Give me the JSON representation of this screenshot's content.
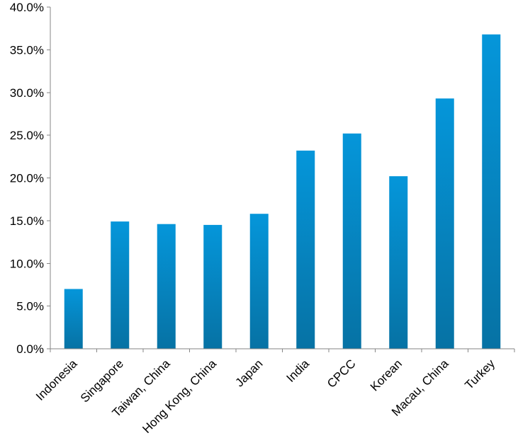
{
  "chart_data": {
    "type": "bar",
    "categories": [
      "Indonesia",
      "Singapore",
      "Taiwan, China",
      "Hong Kong, China",
      "Japan",
      "India",
      "CPCC",
      "Korean",
      "Macau, China",
      "Turkey"
    ],
    "values": [
      7.0,
      14.9,
      14.6,
      14.5,
      15.8,
      23.2,
      25.2,
      20.2,
      29.3,
      36.8
    ],
    "value_unit": "percent",
    "ylim": [
      0,
      40
    ],
    "yticks": [
      "0.0%",
      "5.0%",
      "10.0%",
      "15.0%",
      "20.0%",
      "25.0%",
      "30.0%",
      "35.0%",
      "40.0%"
    ],
    "ytick_values": [
      0,
      5,
      10,
      15,
      20,
      25,
      30,
      35,
      40
    ],
    "grid": false,
    "legend": "none",
    "colors": {
      "bar_top": "#0596DA",
      "bar_bottom": "#0672A4",
      "axis": "#868686"
    }
  }
}
